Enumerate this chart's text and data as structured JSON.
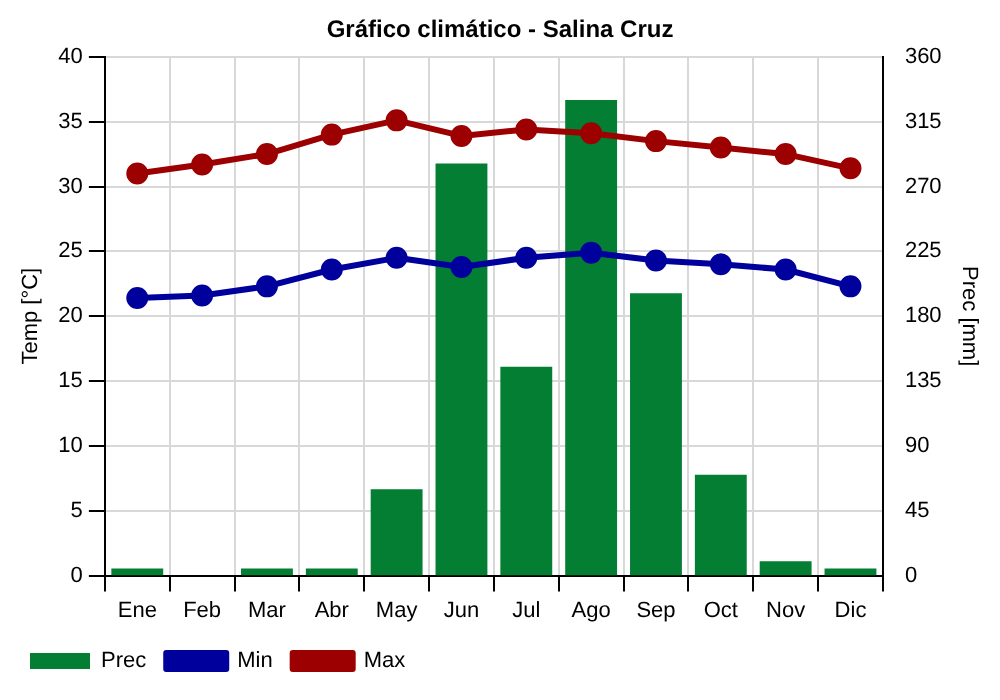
{
  "chart_data": {
    "type": "bar",
    "title": "Gráfico climático - Salina Cruz",
    "ylabel": "Temp [°C]",
    "y2label": "Prec [mm]",
    "categories": [
      "Ene",
      "Feb",
      "Mar",
      "Abr",
      "May",
      "Jun",
      "Jul",
      "Ago",
      "Sep",
      "Oct",
      "Nov",
      "Dic"
    ],
    "series": [
      {
        "name": "Prec",
        "axis": "y2",
        "color": "#037e32",
        "values": [
          5,
          0,
          5,
          5,
          60,
          286,
          145,
          330,
          196,
          70,
          10,
          5
        ]
      },
      {
        "name": "Min",
        "type": "line",
        "axis": "y",
        "color": "#00009c",
        "values": [
          21.4,
          21.6,
          22.3,
          23.6,
          24.5,
          23.8,
          24.5,
          24.9,
          24.3,
          24.0,
          23.6,
          22.3
        ]
      },
      {
        "name": "Max",
        "type": "line",
        "axis": "y",
        "color": "#9c0000",
        "values": [
          31.0,
          31.7,
          32.5,
          34.0,
          35.1,
          33.9,
          34.4,
          34.1,
          33.5,
          33.0,
          32.5,
          31.4
        ]
      }
    ],
    "ylim": [
      0,
      40
    ],
    "yticks": [
      0,
      5,
      10,
      15,
      20,
      25,
      30,
      35,
      40
    ],
    "y2lim": [
      0,
      360
    ],
    "y2ticks": [
      0,
      45,
      90,
      135,
      180,
      225,
      270,
      315,
      360
    ],
    "grid": true,
    "legend": "bottom left",
    "marker": "circle",
    "line_style": "solid"
  }
}
